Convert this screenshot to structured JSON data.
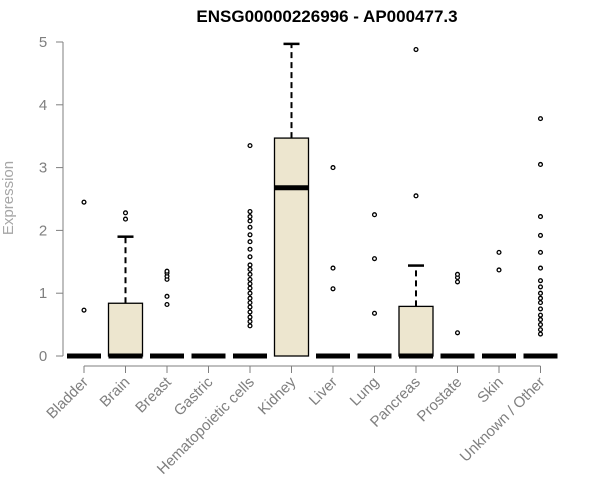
{
  "chart_data": {
    "type": "box",
    "title": "ENSG00000226996 - AP000477.3",
    "xlabel": "",
    "ylabel": "Expression",
    "ylim": [
      0,
      5
    ],
    "yticks": [
      "0",
      "1",
      "2",
      "3",
      "4",
      "5"
    ],
    "categories": [
      "Bladder",
      "Brain",
      "Breast",
      "Gastric",
      "Hematopoietic cells",
      "Kidney",
      "Liver",
      "Lung",
      "Pancreas",
      "Prostate",
      "Skin",
      "Unknown / Other"
    ],
    "box_color": "#ede6cf",
    "boxes": [
      {
        "q1": 0,
        "median": 0,
        "q3": 0,
        "whisker_low": 0,
        "whisker_high": 0,
        "outliers": [
          0.73,
          2.45
        ]
      },
      {
        "q1": 0,
        "median": 0,
        "q3": 0.84,
        "whisker_low": 0,
        "whisker_high": 1.9,
        "outliers": [
          2.18,
          2.28
        ]
      },
      {
        "q1": 0,
        "median": 0,
        "q3": 0,
        "whisker_low": 0,
        "whisker_high": 0,
        "outliers": [
          0.82,
          0.95,
          1.22,
          1.27,
          1.32,
          1.35
        ]
      },
      {
        "q1": 0,
        "median": 0,
        "q3": 0,
        "whisker_low": 0,
        "whisker_high": 0,
        "outliers": []
      },
      {
        "q1": 0,
        "median": 0,
        "q3": 0,
        "whisker_low": 0,
        "whisker_high": 0,
        "outliers": [
          0.48,
          0.55,
          0.62,
          0.7,
          0.78,
          0.85,
          0.92,
          1.0,
          1.08,
          1.15,
          1.22,
          1.3,
          1.38,
          1.45,
          1.58,
          1.7,
          1.82,
          1.93,
          2.05,
          2.15,
          2.22,
          2.3,
          3.35
        ]
      },
      {
        "q1": 0,
        "median": 2.68,
        "q3": 3.47,
        "whisker_low": 0,
        "whisker_high": 4.97,
        "outliers": []
      },
      {
        "q1": 0,
        "median": 0,
        "q3": 0,
        "whisker_low": 0,
        "whisker_high": 0,
        "outliers": [
          1.07,
          1.4,
          3.0
        ]
      },
      {
        "q1": 0,
        "median": 0,
        "q3": 0,
        "whisker_low": 0,
        "whisker_high": 0,
        "outliers": [
          0.68,
          1.55,
          2.25
        ]
      },
      {
        "q1": 0,
        "median": 0,
        "q3": 0.79,
        "whisker_low": 0,
        "whisker_high": 1.44,
        "outliers": [
          2.55,
          4.88
        ]
      },
      {
        "q1": 0,
        "median": 0,
        "q3": 0,
        "whisker_low": 0,
        "whisker_high": 0,
        "outliers": [
          0.37,
          1.18,
          1.25,
          1.3
        ]
      },
      {
        "q1": 0,
        "median": 0,
        "q3": 0,
        "whisker_low": 0,
        "whisker_high": 0,
        "outliers": [
          1.37,
          1.65
        ]
      },
      {
        "q1": 0,
        "median": 0,
        "q3": 0,
        "whisker_low": 0,
        "whisker_high": 0,
        "outliers": [
          0.35,
          0.42,
          0.5,
          0.58,
          0.65,
          0.75,
          0.85,
          0.92,
          1.0,
          1.1,
          1.2,
          1.4,
          1.65,
          1.92,
          2.22,
          3.05,
          3.78
        ]
      }
    ]
  }
}
